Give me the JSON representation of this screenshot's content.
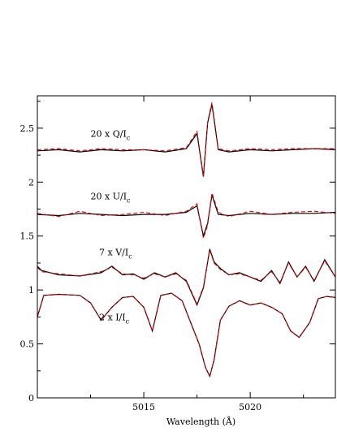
{
  "chart_data": {
    "type": "line",
    "xlabel": "Wavelength (Å)",
    "ylabel": "",
    "xlim": [
      5010,
      5024
    ],
    "ylim": [
      0,
      2.8
    ],
    "x_ticks": [
      5015,
      5020
    ],
    "x_tick_labels": [
      "5015",
      "5020"
    ],
    "y_ticks": [
      0,
      0.5,
      1,
      1.5,
      2,
      2.5
    ],
    "y_tick_labels": [
      "0",
      "0.5",
      "1",
      "1.5",
      "2",
      "2.5"
    ],
    "grid": false,
    "colors": {
      "observed": "#000000",
      "model": "#e00000"
    },
    "annotations": [
      {
        "base": "20 x Q/I",
        "sub": "c",
        "x": 5012.5,
        "y": 2.42
      },
      {
        "base": "20 x U/I",
        "sub": "c",
        "x": 5012.5,
        "y": 1.84
      },
      {
        "base": "7 x V/I",
        "sub": "c",
        "x": 5012.9,
        "y": 1.32
      },
      {
        "base": "2 x I/I",
        "sub": "c",
        "x": 5012.9,
        "y": 0.72
      }
    ],
    "series": [
      {
        "style": "solid",
        "color": "#000000",
        "x": [
          5010.0,
          5011,
          5012,
          5013,
          5014,
          5015,
          5016,
          5017,
          5017.5,
          5017.8,
          5018.0,
          5018.2,
          5018.5,
          5019,
          5020,
          5021,
          5022,
          5023,
          5024
        ],
        "y": [
          2.29,
          2.3,
          2.28,
          2.3,
          2.29,
          2.3,
          2.28,
          2.31,
          2.45,
          2.05,
          2.55,
          2.72,
          2.3,
          2.28,
          2.3,
          2.29,
          2.3,
          2.31,
          2.3
        ]
      },
      {
        "style": "dashed",
        "color": "#e00000",
        "x": [
          5010.0,
          5011,
          5012,
          5013,
          5014,
          5015,
          5016,
          5017,
          5017.5,
          5017.8,
          5018.0,
          5018.2,
          5018.5,
          5019,
          5020,
          5021,
          5022,
          5023,
          5024
        ],
        "y": [
          2.3,
          2.31,
          2.29,
          2.31,
          2.3,
          2.3,
          2.29,
          2.32,
          2.47,
          2.05,
          2.56,
          2.74,
          2.31,
          2.29,
          2.31,
          2.3,
          2.31,
          2.31,
          2.31
        ]
      },
      {
        "style": "solid",
        "color": "#000000",
        "x": [
          5010.0,
          5011,
          5012,
          5013,
          5014,
          5015,
          5016,
          5017,
          5017.5,
          5017.8,
          5018.0,
          5018.2,
          5018.5,
          5019,
          5020,
          5021,
          5022,
          5023,
          5024
        ],
        "y": [
          1.7,
          1.69,
          1.71,
          1.7,
          1.69,
          1.7,
          1.7,
          1.72,
          1.78,
          1.5,
          1.62,
          1.88,
          1.7,
          1.69,
          1.71,
          1.7,
          1.71,
          1.71,
          1.72
        ]
      },
      {
        "style": "dashed",
        "color": "#e00000",
        "x": [
          5010.0,
          5011,
          5012,
          5013,
          5014,
          5015,
          5016,
          5017,
          5017.5,
          5017.8,
          5018.0,
          5018.2,
          5018.5,
          5019,
          5020,
          5021,
          5022,
          5023,
          5024
        ],
        "y": [
          1.71,
          1.68,
          1.73,
          1.69,
          1.7,
          1.72,
          1.69,
          1.73,
          1.8,
          1.48,
          1.6,
          1.9,
          1.72,
          1.68,
          1.73,
          1.7,
          1.72,
          1.73,
          1.71
        ]
      },
      {
        "style": "solid",
        "color": "#000000",
        "x": [
          5010.0,
          5010.2,
          5011,
          5012,
          5013,
          5013.5,
          5014,
          5014.5,
          5015,
          5015.5,
          5016,
          5016.5,
          5017,
          5017.5,
          5017.8,
          5018.1,
          5018.3,
          5018.6,
          5019,
          5019.5,
          5020,
          5020.5,
          5021,
          5021.4,
          5021.8,
          5022.2,
          5022.6,
          5023,
          5023.5,
          5024
        ],
        "y": [
          1.22,
          1.18,
          1.14,
          1.13,
          1.16,
          1.22,
          1.14,
          1.15,
          1.1,
          1.16,
          1.12,
          1.16,
          1.08,
          0.86,
          1.02,
          1.38,
          1.26,
          1.2,
          1.14,
          1.16,
          1.12,
          1.08,
          1.18,
          1.06,
          1.26,
          1.12,
          1.22,
          1.08,
          1.28,
          1.12
        ]
      },
      {
        "style": "dashed",
        "color": "#e00000",
        "x": [
          5010.0,
          5010.2,
          5011,
          5012,
          5013,
          5013.5,
          5014,
          5014.5,
          5015,
          5015.5,
          5016,
          5016.5,
          5017,
          5017.5,
          5017.8,
          5018.1,
          5018.3,
          5018.6,
          5019,
          5019.5,
          5020,
          5020.5,
          5021,
          5021.4,
          5021.8,
          5022.2,
          5022.6,
          5023,
          5023.5,
          5024
        ],
        "y": [
          1.21,
          1.17,
          1.15,
          1.13,
          1.17,
          1.21,
          1.15,
          1.14,
          1.11,
          1.15,
          1.12,
          1.15,
          1.09,
          0.87,
          1.03,
          1.37,
          1.25,
          1.19,
          1.14,
          1.15,
          1.12,
          1.09,
          1.17,
          1.07,
          1.25,
          1.12,
          1.21,
          1.09,
          1.27,
          1.12
        ]
      },
      {
        "style": "solid",
        "color": "#000000",
        "x": [
          5010.0,
          5010.3,
          5011,
          5012,
          5012.5,
          5013,
          5013.5,
          5014,
          5014.5,
          5015,
          5015.4,
          5015.8,
          5016.3,
          5016.8,
          5017.2,
          5017.6,
          5017.9,
          5018.1,
          5018.3,
          5018.6,
          5019,
          5019.5,
          5020,
          5020.5,
          5021,
          5021.5,
          5021.9,
          5022.3,
          5022.8,
          5023.2,
          5023.6,
          5024
        ],
        "y": [
          0.75,
          0.95,
          0.96,
          0.95,
          0.88,
          0.72,
          0.84,
          0.93,
          0.94,
          0.84,
          0.62,
          0.95,
          0.97,
          0.9,
          0.7,
          0.5,
          0.28,
          0.2,
          0.35,
          0.72,
          0.85,
          0.9,
          0.86,
          0.88,
          0.84,
          0.78,
          0.62,
          0.56,
          0.7,
          0.92,
          0.94,
          0.93
        ]
      },
      {
        "style": "dashed",
        "color": "#e00000",
        "x": [
          5010.0,
          5010.3,
          5011,
          5012,
          5012.5,
          5013,
          5013.5,
          5014,
          5014.5,
          5015,
          5015.4,
          5015.8,
          5016.3,
          5016.8,
          5017.2,
          5017.6,
          5017.9,
          5018.1,
          5018.3,
          5018.6,
          5019,
          5019.5,
          5020,
          5020.5,
          5021,
          5021.5,
          5021.9,
          5022.3,
          5022.8,
          5023.2,
          5023.6,
          5024
        ],
        "y": [
          0.75,
          0.95,
          0.96,
          0.95,
          0.88,
          0.72,
          0.84,
          0.93,
          0.94,
          0.84,
          0.62,
          0.95,
          0.97,
          0.9,
          0.7,
          0.5,
          0.28,
          0.2,
          0.35,
          0.72,
          0.85,
          0.9,
          0.86,
          0.88,
          0.84,
          0.78,
          0.62,
          0.56,
          0.7,
          0.92,
          0.94,
          0.93
        ]
      }
    ]
  }
}
